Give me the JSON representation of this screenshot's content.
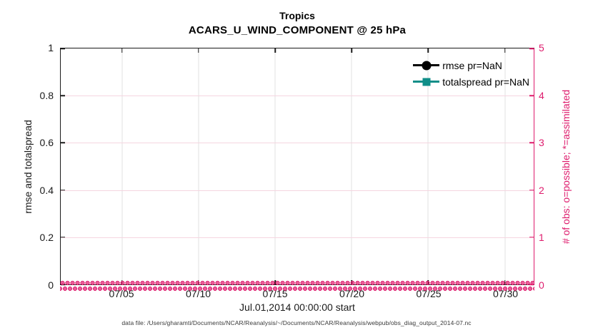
{
  "title": "Tropics",
  "subtitle": "ACARS_U_WIND_COMPONENT @ 25 hPa",
  "axes": {
    "x": {
      "label": "Jul.01,2014 00:00:00 start",
      "ticks": [
        "07/05",
        "07/10",
        "07/15",
        "07/20",
        "07/25",
        "07/30"
      ]
    },
    "left": {
      "label": "rmse and totalspread",
      "ticks": [
        "1",
        "0.8",
        "0.6",
        "0.4",
        "0.2",
        "0"
      ]
    },
    "right": {
      "label": "# of obs: o=possible; *=assimilated",
      "ticks": [
        "5",
        "4",
        "3",
        "2",
        "1",
        "0"
      ]
    }
  },
  "legend": {
    "items": [
      {
        "label": "rmse pr=NaN",
        "marker": "filled-circle",
        "color": "#000000"
      },
      {
        "label": "totalspread pr=NaN",
        "marker": "filled-square",
        "color": "#0F8E88"
      }
    ]
  },
  "caption": "data file: /Users/gharamti/Documents/NCAR/Reanalysis/~/Documents/NCAR/Reanalysis/webpub/obs_diag_output_2014-07.nc",
  "colors": {
    "obs_pink": "#DE1C6D",
    "grid_pink": "#F5D5E0",
    "grid_gray": "#E2E2E2",
    "axis": "#1A1A1A",
    "teal": "#0F8E88",
    "black": "#000000"
  },
  "chart_data": {
    "type": "line",
    "title": "Tropics",
    "subtitle": "ACARS_U_WIND_COMPONENT @ 25 hPa",
    "xlabel": "Jul.01,2014 00:00:00 start",
    "ylabel_left": "rmse and totalspread",
    "ylabel_right": "# of obs: o=possible; *=assimilated",
    "xlim": [
      "2014-07-01 00:00",
      "2014-08-01 00:00"
    ],
    "ylim_left": [
      0,
      1
    ],
    "ylim_right": [
      0,
      5
    ],
    "xticks": [
      "07/05",
      "07/10",
      "07/15",
      "07/20",
      "07/25",
      "07/30"
    ],
    "yticks_left": [
      0,
      0.2,
      0.4,
      0.6,
      0.8,
      1
    ],
    "yticks_right": [
      0,
      1,
      2,
      3,
      4,
      5
    ],
    "grid": true,
    "legend_position": "upper-right-inside, no box",
    "series": [
      {
        "name": "rmse pr=NaN",
        "axis": "left",
        "color": "#000000",
        "marker": "filled-circle",
        "values": "all NaN — no curve drawn"
      },
      {
        "name": "totalspread pr=NaN",
        "axis": "left",
        "color": "#0F8E88",
        "marker": "filled-square",
        "values": "all NaN — no curve drawn"
      },
      {
        "name": "# of obs possible (o markers)",
        "axis": "right",
        "color": "#DE1C6D",
        "marker": "o",
        "values": "0 at every time bin from Jul 01 to Jul 31 2014 (dense marker band along y=0)"
      },
      {
        "name": "# of obs assimilated (* markers)",
        "axis": "right",
        "color": "#DE1C6D",
        "marker": "*",
        "values": "0 at every time bin from Jul 01 to Jul 31 2014 (dense marker band along y=0)"
      }
    ]
  }
}
